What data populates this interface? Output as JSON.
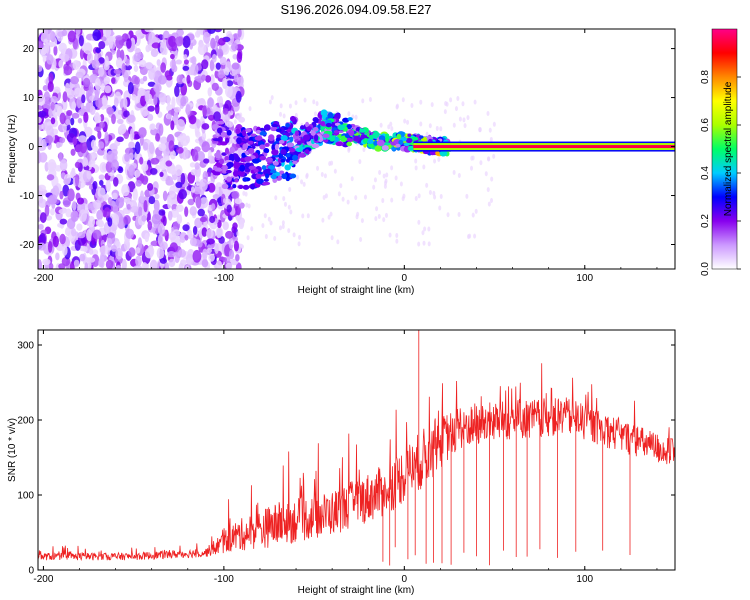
{
  "title": "S196.2026.094.09.58.E27",
  "chart_data": [
    {
      "type": "heatmap",
      "xlabel": "Height of straight line (km)",
      "ylabel": "Frequency (Hz)",
      "xlim": [
        -203,
        150
      ],
      "ylim": [
        -25,
        24
      ],
      "xticks": [
        -200,
        -100,
        0,
        100
      ],
      "xtick_labels": [
        "-200",
        "-100",
        "0",
        "100"
      ],
      "yticks": [
        -20,
        -10,
        0,
        10,
        20
      ],
      "ytick_labels": [
        "-20",
        "-10",
        "0",
        "10",
        "20"
      ],
      "colorbar": {
        "label": "Normalized spectral amplitude",
        "range": [
          0.0,
          1.0
        ],
        "ticks": [
          0.0,
          0.2,
          0.4,
          0.6,
          0.8
        ],
        "tick_labels": [
          "0.0",
          "0.2",
          "0.4",
          "0.6",
          "0.8"
        ],
        "colormap": [
          "#ffffff",
          "#cc99ff",
          "#8800ee",
          "#0000ff",
          "#00ccff",
          "#00ff66",
          "#aaff00",
          "#ffff00",
          "#ff8800",
          "#ff0000",
          "#ff0088"
        ]
      },
      "features": {
        "noise_region_x": [
          -203,
          -100
        ],
        "noise_amplitude_typical": 0.1,
        "dispersed_region_x": [
          -105,
          -40
        ],
        "dispersed_center_hz": [
          {
            "x": -100,
            "f": -3
          },
          {
            "x": -80,
            "f": -2
          },
          {
            "x": -60,
            "f": 0
          },
          {
            "x": -45,
            "f": 4
          },
          {
            "x": -30,
            "f": 3
          },
          {
            "x": -15,
            "f": 1
          },
          {
            "x": 0,
            "f": 1
          },
          {
            "x": 20,
            "f": 0
          }
        ],
        "line_start_x": 5,
        "line_end_x": 150,
        "line_freq_hz": 0,
        "line_amplitude": 0.95
      }
    },
    {
      "type": "line",
      "xlabel": "Height of straight line (km)",
      "ylabel": "SNR (10 * v/v)",
      "xlim": [
        -203,
        150
      ],
      "ylim": [
        0,
        320
      ],
      "xticks": [
        -200,
        -100,
        0,
        100
      ],
      "xtick_labels": [
        "-200",
        "-100",
        "0",
        "100"
      ],
      "yticks": [
        0,
        100,
        200,
        300
      ],
      "ytick_labels": [
        "0",
        "100",
        "200",
        "300"
      ],
      "color": "#ee2222",
      "envelope": [
        {
          "x": -203,
          "base": 17,
          "amp": 10
        },
        {
          "x": -150,
          "base": 17,
          "amp": 10
        },
        {
          "x": -110,
          "base": 22,
          "amp": 12
        },
        {
          "x": -95,
          "base": 40,
          "amp": 40
        },
        {
          "x": -70,
          "base": 55,
          "amp": 60
        },
        {
          "x": -40,
          "base": 70,
          "amp": 60
        },
        {
          "x": -10,
          "base": 100,
          "amp": 70
        },
        {
          "x": 10,
          "base": 140,
          "amp": 80
        },
        {
          "x": 30,
          "base": 185,
          "amp": 60
        },
        {
          "x": 60,
          "base": 195,
          "amp": 55
        },
        {
          "x": 90,
          "base": 200,
          "amp": 50
        },
        {
          "x": 120,
          "base": 175,
          "amp": 45
        },
        {
          "x": 150,
          "base": 150,
          "amp": 40
        }
      ],
      "peak": {
        "x": 8,
        "y": 320
      },
      "dropouts_x": [
        -12,
        -8,
        -5,
        2,
        6,
        12,
        16,
        21,
        26,
        33,
        40,
        47,
        55,
        62,
        68,
        75,
        85,
        95,
        110,
        125
      ]
    }
  ]
}
